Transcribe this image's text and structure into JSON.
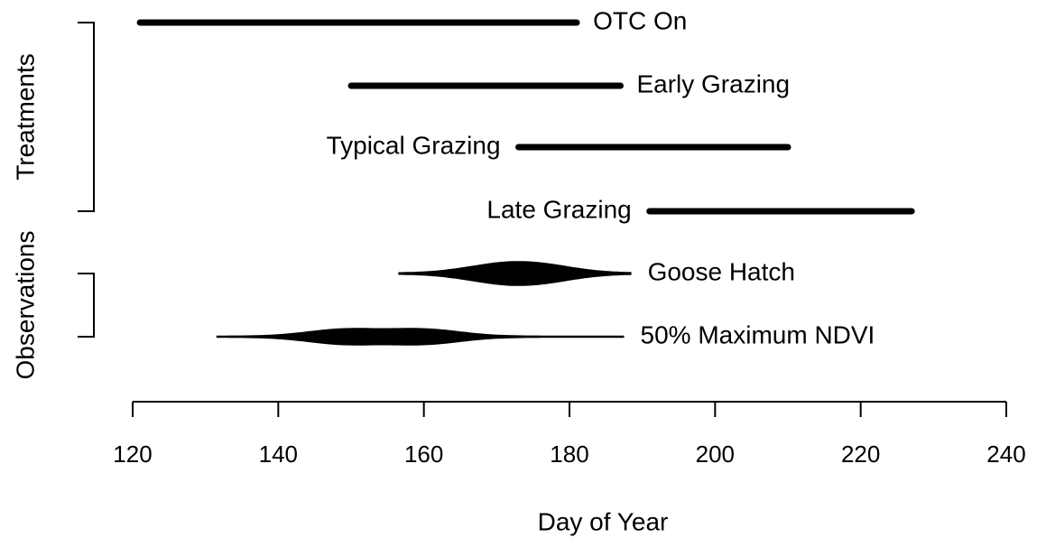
{
  "chart_data": {
    "type": "range",
    "xlabel": "Day of Year",
    "xlim": [
      120,
      240
    ],
    "xticks": [
      120,
      140,
      160,
      180,
      200,
      220,
      240
    ],
    "color": "#000000",
    "groups": [
      {
        "name": "Treatments",
        "items": [
          {
            "name": "OTC On",
            "kind": "bar",
            "start": 121,
            "end": 181,
            "label_side": "right"
          },
          {
            "name": "Early Grazing",
            "kind": "bar",
            "start": 150,
            "end": 187,
            "label_side": "right"
          },
          {
            "name": "Typical Grazing",
            "kind": "bar",
            "start": 173,
            "end": 210,
            "label_side": "left"
          },
          {
            "name": "Late Grazing",
            "kind": "bar",
            "start": 191,
            "end": 227,
            "label_side": "left"
          }
        ]
      },
      {
        "name": "Observations",
        "items": [
          {
            "name": "Goose Hatch",
            "kind": "violin",
            "start": 156.5,
            "end": 188.5,
            "modes": [
              170,
              176
            ],
            "label_side": "right"
          },
          {
            "name": "50% Maximum NDVI",
            "kind": "violin",
            "start": 131.5,
            "end": 187.5,
            "modes": [
              149,
              160
            ],
            "label_side": "right"
          }
        ]
      }
    ]
  }
}
